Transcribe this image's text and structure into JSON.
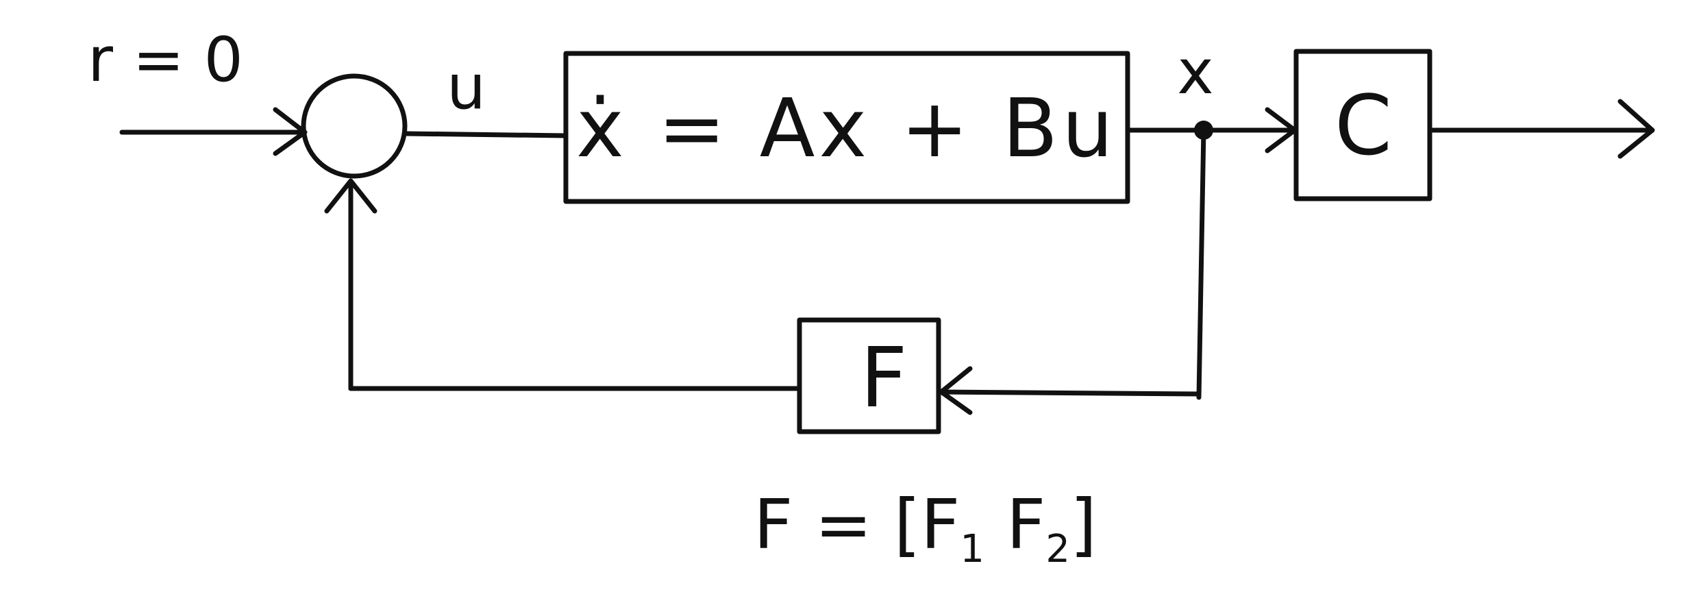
{
  "labels": {
    "reference": "r = 0",
    "control_signal": "u",
    "state_signal": "x"
  },
  "blocks": {
    "plant_equation": "ẋ = Ax + Bu",
    "output_block": "C",
    "feedback_block": "F"
  },
  "gain_definition": {
    "prefix": "F = [F",
    "sub1": "1",
    "middle": " F",
    "sub2": "2",
    "suffix": "]"
  }
}
